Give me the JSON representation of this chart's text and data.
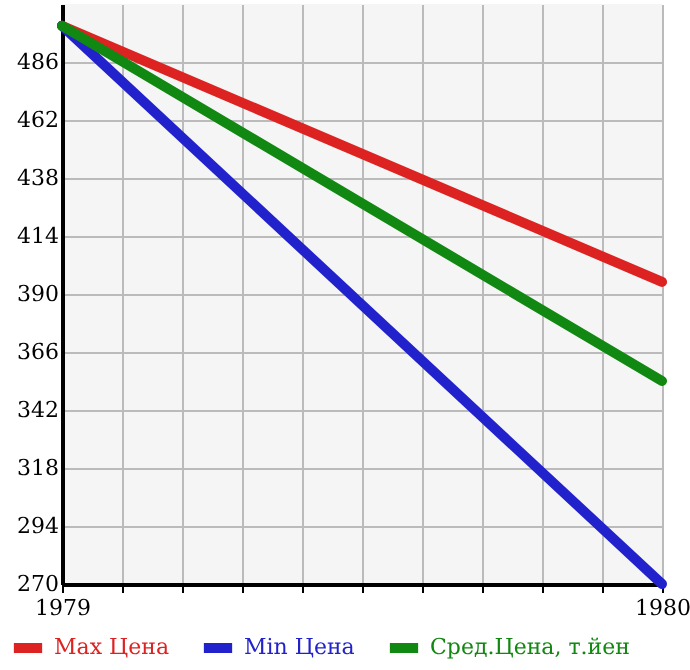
{
  "chart_data": {
    "type": "line",
    "x": [
      1979,
      1980
    ],
    "series": [
      {
        "name": "Max Цена",
        "color": "#dd2222",
        "values": [
          501,
          395
        ]
      },
      {
        "name": "Min Цена",
        "color": "#2222cc",
        "values": [
          501,
          270
        ]
      },
      {
        "name": "Сред.Цена, т.йен",
        "color": "#118811",
        "values": [
          501,
          354
        ]
      }
    ],
    "xlim": [
      1979,
      1980
    ],
    "xticks": [
      1979,
      {
        "value": 1979.1,
        "label": null
      },
      {
        "value": 1979.2,
        "label": null
      },
      {
        "value": 1979.3,
        "label": null
      },
      {
        "value": 1979.4,
        "label": null
      },
      {
        "value": 1979.5,
        "label": null
      },
      {
        "value": 1979.6,
        "label": null
      },
      {
        "value": 1979.7,
        "label": null
      },
      {
        "value": 1979.8,
        "label": null
      },
      {
        "value": 1979.9,
        "label": null
      },
      1980
    ],
    "ylim": [
      270,
      510
    ],
    "yticks": [
      270,
      294,
      318,
      342,
      366,
      390,
      414,
      438,
      462,
      486
    ],
    "grid": true,
    "legend": "bottom",
    "marker": "none",
    "line_style": "solid"
  }
}
